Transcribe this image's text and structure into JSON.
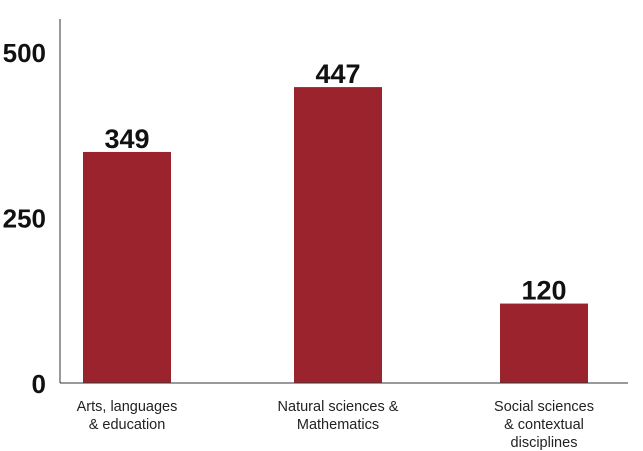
{
  "chart_data": {
    "type": "bar",
    "title": "",
    "xlabel": "",
    "ylabel": "",
    "categories": [
      [
        "Arts, languages",
        "& education"
      ],
      [
        "Natural sciences &",
        "Mathematics"
      ],
      [
        "Social sciences",
        "& contextual",
        "disciplines"
      ]
    ],
    "values": [
      349,
      447,
      120
    ],
    "value_labels": [
      "349",
      "447",
      "120"
    ],
    "ylim": [
      0,
      500
    ],
    "yticks": [
      0,
      250,
      500
    ],
    "ytick_labels": [
      "0",
      "250",
      "500"
    ],
    "grid": false,
    "legend": "none",
    "colors": {
      "bar": "#9b232d",
      "text": "#111111",
      "axis": "#333333"
    }
  }
}
